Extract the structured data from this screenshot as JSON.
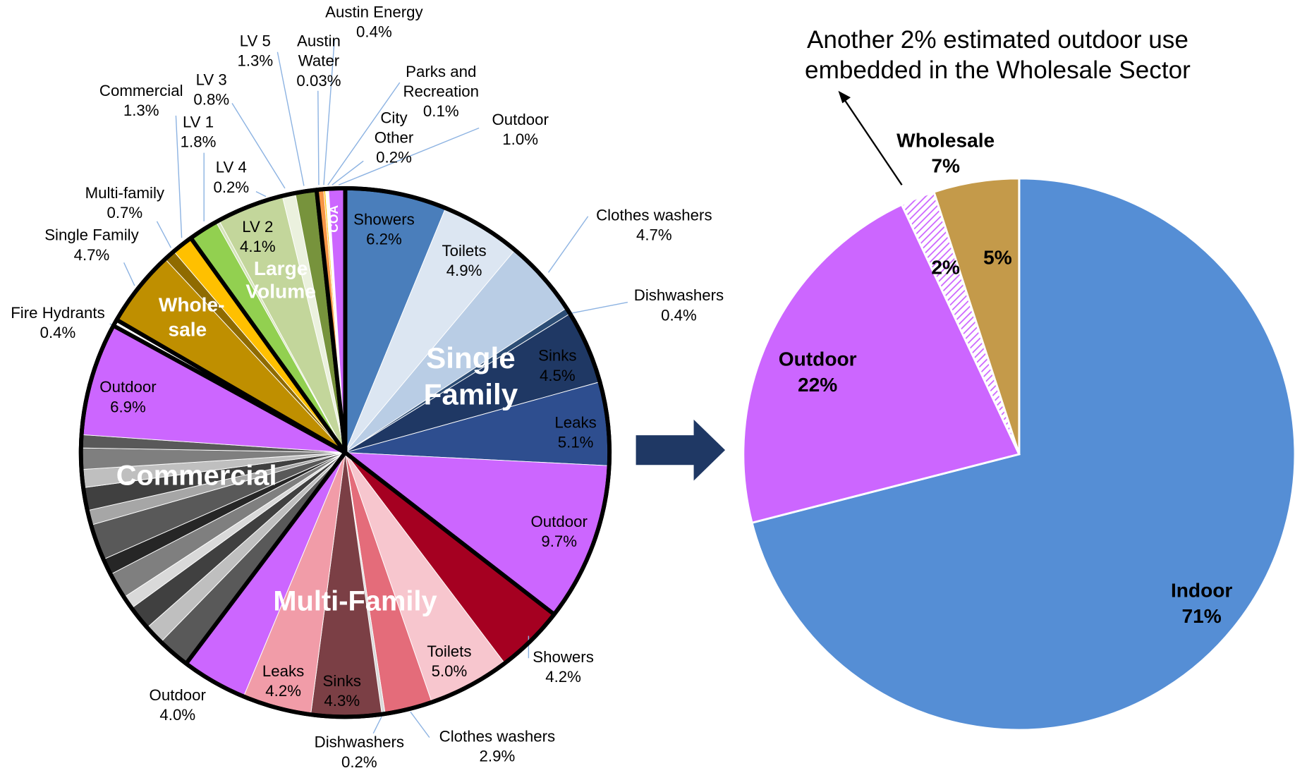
{
  "chart_data": [
    {
      "type": "pie",
      "groups": [
        {
          "name": "Single Family",
          "categories": [
            "Showers",
            "Toilets",
            "Clothes washers",
            "Dishwashers",
            "Sinks",
            "Leaks",
            "Outdoor"
          ],
          "values": [
            6.2,
            4.9,
            4.7,
            0.4,
            4.5,
            5.1,
            9.7
          ],
          "value_labels": [
            "6.2%",
            "4.9%",
            "4.7%",
            "0.4%",
            "4.5%",
            "5.1%",
            "9.7%"
          ],
          "colors": [
            "#4a7ebb",
            "#dce6f2",
            "#b9cde5",
            "#2c4d75",
            "#1f3864",
            "#2e4e8f",
            "#cc66ff"
          ]
        },
        {
          "name": "Multi-Family",
          "categories": [
            "Showers",
            "Toilets",
            "Clothes washers",
            "Dishwashers",
            "Sinks",
            "Leaks",
            "Outdoor"
          ],
          "values": [
            4.2,
            5.0,
            2.9,
            0.2,
            4.3,
            4.2,
            4.0
          ],
          "value_labels": [
            "4.2%",
            "5.0%",
            "2.9%",
            "0.2%",
            "4.3%",
            "4.2%",
            "4.0%"
          ],
          "colors": [
            "#a50021",
            "#f7c6ce",
            "#e46c7a",
            "#d9d9d9",
            "#7b3f45",
            "#f19ca8",
            "#cc66ff"
          ]
        },
        {
          "name": "Commercial",
          "categories": [
            null,
            null,
            null,
            null,
            null,
            null,
            null,
            null,
            null,
            null,
            null,
            null,
            "Outdoor"
          ],
          "values": [
            2.0,
            1.2,
            1.5,
            0.8,
            1.6,
            1.0,
            2.2,
            0.9,
            1.4,
            1.1,
            1.3,
            0.8,
            6.9
          ],
          "value_labels": [
            null,
            null,
            null,
            null,
            null,
            null,
            null,
            null,
            null,
            null,
            null,
            null,
            "6.9%"
          ],
          "colors": [
            "#595959",
            "#bfbfbf",
            "#404040",
            "#d9d9d9",
            "#7f7f7f",
            "#262626",
            "#595959",
            "#a6a6a6",
            "#404040",
            "#bfbfbf",
            "#7f7f7f",
            "#595959",
            "#cc66ff"
          ]
        },
        {
          "name": null,
          "categories": [
            "Fire Hydrants"
          ],
          "values": [
            0.4
          ],
          "value_labels": [
            "0.4%"
          ],
          "colors": [
            "#ffffff"
          ]
        },
        {
          "name": "Whole-sale",
          "categories": [
            "Single Family",
            "Multi-family",
            "Commercial"
          ],
          "values": [
            4.7,
            0.7,
            1.3
          ],
          "value_labels": [
            "4.7%",
            "0.7%",
            "1.3%"
          ],
          "colors": [
            "#bf8f00",
            "#8f6b00",
            "#ffc000"
          ]
        },
        {
          "name": "Large Volume",
          "categories": [
            "LV 1",
            "LV 4",
            "LV 2",
            "LV 3",
            "LV 5"
          ],
          "values": [
            1.8,
            0.2,
            4.1,
            0.8,
            1.3
          ],
          "value_labels": [
            "1.8%",
            "0.2%",
            "4.1%",
            "0.8%",
            "1.3%"
          ],
          "colors": [
            "#92d050",
            "#d7e4bd",
            "#c3d69b",
            "#ebf1de",
            "#77933c"
          ]
        },
        {
          "name": "COA",
          "categories": [
            "Austin Water",
            "Austin Energy",
            "Parks and Recreation",
            "City Other",
            "Outdoor"
          ],
          "values": [
            0.03,
            0.4,
            0.1,
            0.2,
            1.0
          ],
          "value_labels": [
            "0.03%",
            "0.4%",
            "0.1%",
            "0.2%",
            "1.0%"
          ],
          "colors": [
            "#ffffff",
            "#f79646",
            "#ffc000",
            "#ffffff",
            "#cc66ff"
          ]
        }
      ]
    },
    {
      "type": "pie",
      "categories": [
        "Indoor",
        "Outdoor",
        null,
        null
      ],
      "values": [
        71,
        22,
        2,
        5
      ],
      "value_labels": [
        "71%",
        "22%",
        "2%",
        "5%"
      ],
      "colors": [
        "#558ed5",
        "#cc66ff",
        "#cc66ff",
        "#c49a4a"
      ],
      "hatched": [
        false,
        false,
        true,
        false
      ],
      "group_label": {
        "name": "Wholesale",
        "value": 7,
        "value_label": "7%"
      },
      "annotation": "Another 2% estimated outdoor use embedded in the Wholesale Sector"
    }
  ]
}
